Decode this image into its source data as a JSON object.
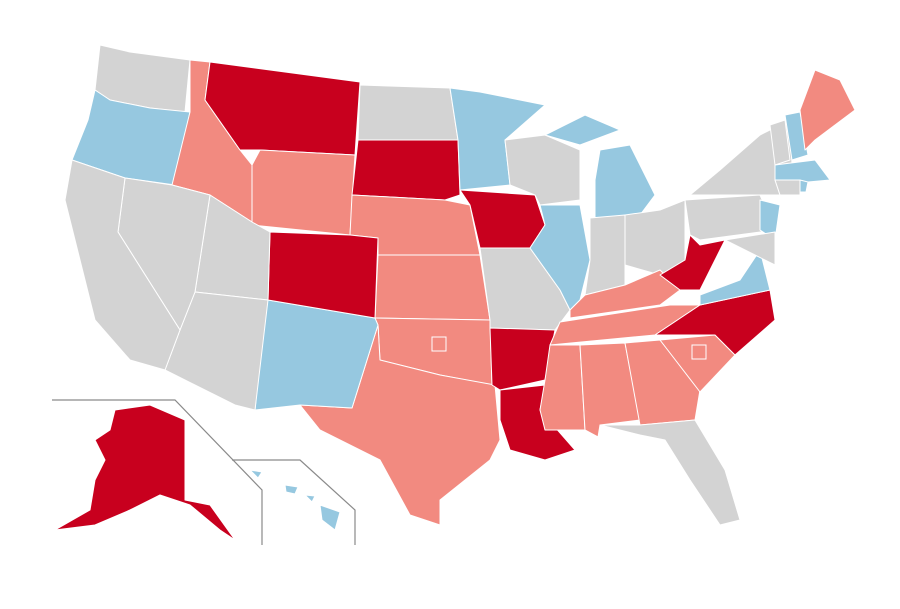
{
  "map": {
    "colors": [
      "#c8001e",
      "#f28a80",
      "#96c8e0",
      "#d3d3d3"
    ],
    "border_color": "#ffffff",
    "inset_line_color": "#8a8a8a"
  }
}
